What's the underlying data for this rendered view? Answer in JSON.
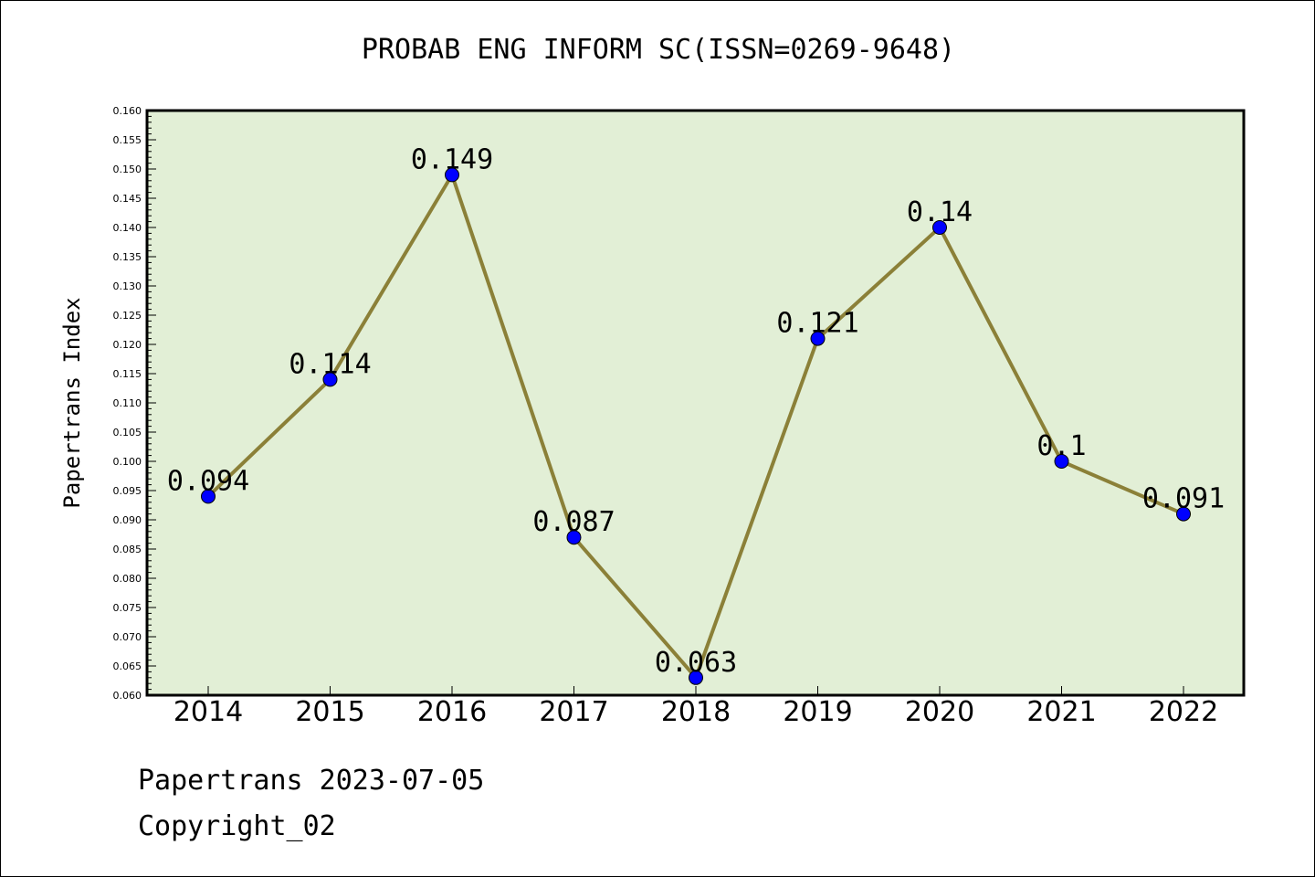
{
  "title": "PROBAB ENG INFORM SC(ISSN=0269-9648)",
  "footer": {
    "date_line": "Papertrans 2023-07-05",
    "copyright_line": "Copyright_02"
  },
  "colors": {
    "plot_background": "#e2efd6",
    "line": "#8b8038",
    "marker": "#0000ff",
    "axis": "#000000"
  },
  "chart_data": {
    "type": "line",
    "title": "PROBAB ENG INFORM SC(ISSN=0269-9648)",
    "xlabel": "",
    "ylabel": "Papertrans Index",
    "categories": [
      "2014",
      "2015",
      "2016",
      "2017",
      "2018",
      "2019",
      "2020",
      "2021",
      "2022"
    ],
    "series": [
      {
        "values": [
          0.094,
          0.114,
          0.149,
          0.087,
          0.063,
          0.121,
          0.14,
          0.1,
          0.091
        ],
        "data_labels": [
          "0.094",
          "0.114",
          "0.149",
          "0.087",
          "0.063",
          "0.121",
          "0.14",
          "0.1",
          "0.091"
        ]
      }
    ],
    "ylim": [
      0.06,
      0.16
    ],
    "y_major_ticks": [
      "0.060",
      "0.065",
      "0.070",
      "0.075",
      "0.080",
      "0.085",
      "0.090",
      "0.095",
      "0.100",
      "0.105",
      "0.110",
      "0.115",
      "0.120",
      "0.125",
      "0.130",
      "0.135",
      "0.140",
      "0.145",
      "0.150",
      "0.155",
      "0.160"
    ],
    "y_minor_step": 0.001,
    "grid": false,
    "legend": "none",
    "marker": "circle"
  }
}
